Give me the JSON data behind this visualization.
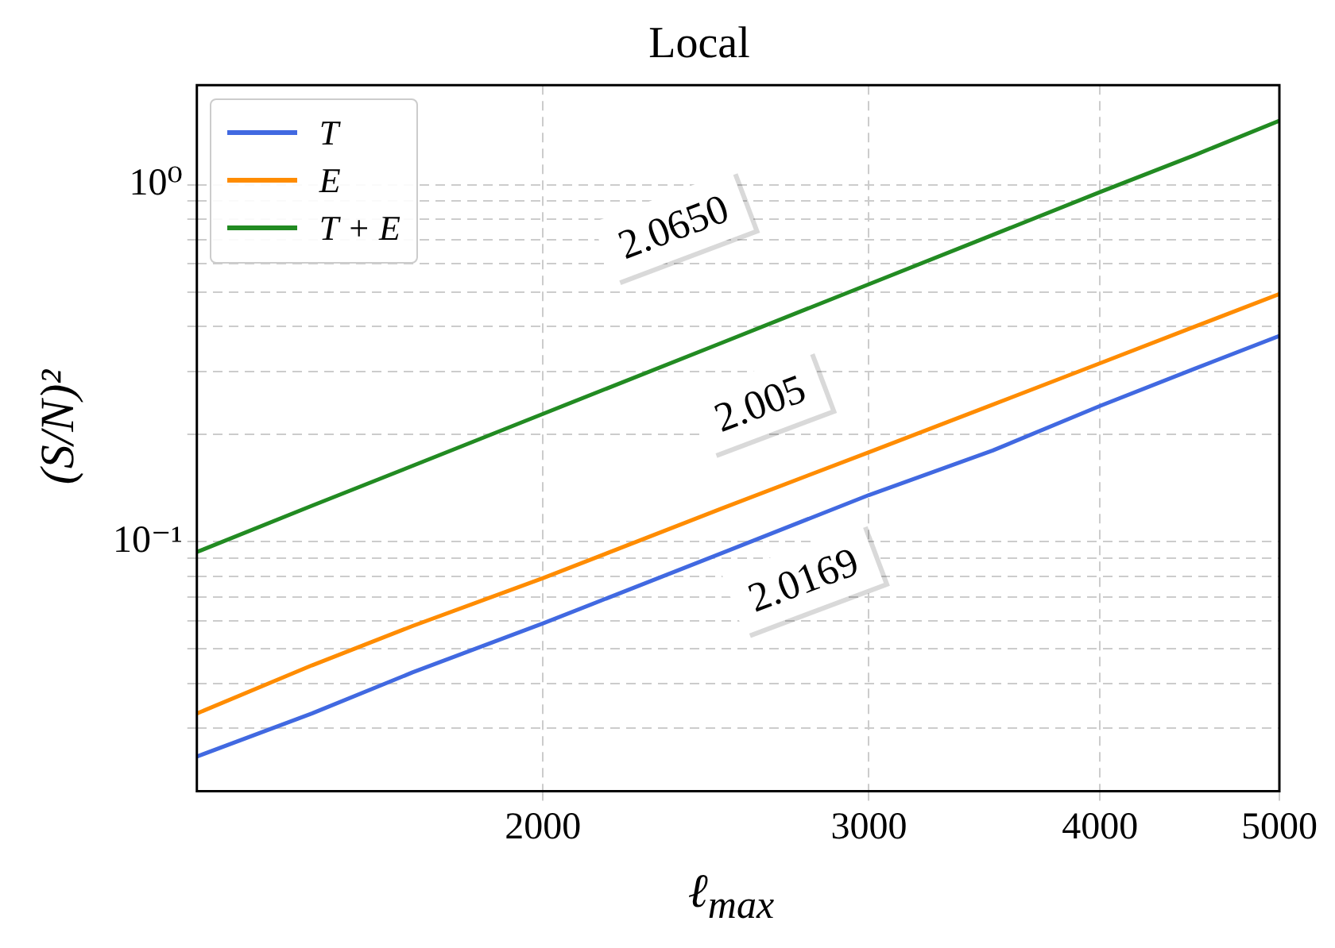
{
  "chart_data": {
    "type": "line",
    "title": "Local",
    "xlabel": "ℓ$_{max}$",
    "ylabel": "(S/N)²",
    "log": "xy",
    "grid": true,
    "legend": "top left",
    "marker": "none",
    "line_style": "solid",
    "xlim": [
      1300,
      5000
    ],
    "xticks": [
      2000,
      3000,
      4000,
      5000
    ],
    "ylim": [
      0.02,
      1.9
    ],
    "yticks": [
      {
        "value": 0.03,
        "label": null
      },
      {
        "value": 0.04,
        "label": null
      },
      {
        "value": 0.05,
        "label": null
      },
      {
        "value": 0.06,
        "label": null
      },
      {
        "value": 0.07,
        "label": null
      },
      {
        "value": 0.08,
        "label": null
      },
      {
        "value": 0.09,
        "label": null
      },
      {
        "value": 0.1,
        "label": "10⁻¹"
      },
      {
        "value": 0.2,
        "label": null
      },
      {
        "value": 0.3,
        "label": null
      },
      {
        "value": 0.4,
        "label": null
      },
      {
        "value": 0.5,
        "label": null
      },
      {
        "value": 0.6,
        "label": null
      },
      {
        "value": 0.7,
        "label": null
      },
      {
        "value": 0.8,
        "label": null
      },
      {
        "value": 0.9,
        "label": null
      },
      {
        "value": 1,
        "label": "10⁰"
      }
    ],
    "series": [
      {
        "name": "T",
        "color": "#4169e1",
        "x": [
          1300,
          1500,
          1700,
          2000,
          2500,
          3000,
          3500,
          4000,
          4500,
          5000
        ],
        "values": [
          0.025,
          0.033,
          0.043,
          0.059,
          0.093,
          0.135,
          0.18,
          0.24,
          0.305,
          0.377
        ]
      },
      {
        "name": "E",
        "color": "#ff8c00",
        "x": [
          1300,
          1500,
          1700,
          2000,
          2500,
          3000,
          3500,
          4000,
          4500,
          5000
        ],
        "values": [
          0.033,
          0.045,
          0.058,
          0.079,
          0.124,
          0.178,
          0.242,
          0.316,
          0.4,
          0.494
        ]
      },
      {
        "name": "T + E",
        "color": "#228b22",
        "x": [
          1300,
          1500,
          1700,
          2000,
          2500,
          3000,
          3500,
          4000,
          4500,
          5000
        ],
        "values": [
          0.0935,
          0.126,
          0.163,
          0.228,
          0.361,
          0.526,
          0.723,
          0.953,
          1.21,
          1.51
        ]
      }
    ],
    "annotations": [
      "2.0650",
      "2.005",
      "2.0169"
    ]
  }
}
